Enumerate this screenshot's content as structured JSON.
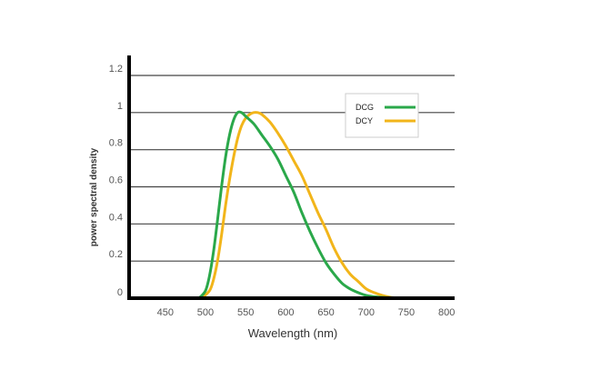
{
  "chart_data": {
    "type": "line",
    "title": "",
    "xlabel": "Wavelength (nm)",
    "ylabel": "power spectral density",
    "xlim": [
      405,
      810
    ],
    "ylim": [
      0,
      1.2
    ],
    "xticks": [
      "450",
      "500",
      "550",
      "600",
      "650",
      "700",
      "750",
      "800"
    ],
    "yticks": [
      "0",
      "0.2",
      "0.4",
      "0.6",
      "0.8",
      "1",
      "1.2"
    ],
    "grid": "horizontal",
    "legend_position": "top-right",
    "series": [
      {
        "name": "DCG",
        "color": "#2aa84a",
        "x": [
          492,
          500,
          505,
          510,
          515,
          520,
          525,
          530,
          535,
          540,
          545,
          550,
          560,
          570,
          580,
          590,
          600,
          610,
          620,
          630,
          640,
          650,
          660,
          670,
          680,
          690,
          700,
          710,
          720,
          730,
          740
        ],
        "y": [
          0.0,
          0.04,
          0.12,
          0.25,
          0.42,
          0.6,
          0.76,
          0.88,
          0.96,
          1.0,
          1.0,
          0.98,
          0.94,
          0.88,
          0.82,
          0.75,
          0.66,
          0.57,
          0.46,
          0.36,
          0.27,
          0.19,
          0.13,
          0.08,
          0.05,
          0.03,
          0.015,
          0.008,
          0.004,
          0.0015,
          0.0
        ]
      },
      {
        "name": "DCY",
        "color": "#f2b51a",
        "x": [
          495,
          505,
          510,
          515,
          520,
          525,
          530,
          535,
          540,
          545,
          550,
          555,
          560,
          565,
          570,
          580,
          590,
          600,
          610,
          620,
          630,
          640,
          650,
          660,
          670,
          680,
          690,
          700,
          710,
          720,
          730,
          740
        ],
        "y": [
          0.0,
          0.04,
          0.1,
          0.2,
          0.34,
          0.5,
          0.64,
          0.76,
          0.86,
          0.93,
          0.97,
          0.99,
          1.0,
          1.0,
          0.99,
          0.95,
          0.89,
          0.82,
          0.74,
          0.66,
          0.56,
          0.46,
          0.37,
          0.27,
          0.19,
          0.13,
          0.09,
          0.05,
          0.03,
          0.015,
          0.005,
          0.0
        ]
      }
    ]
  }
}
